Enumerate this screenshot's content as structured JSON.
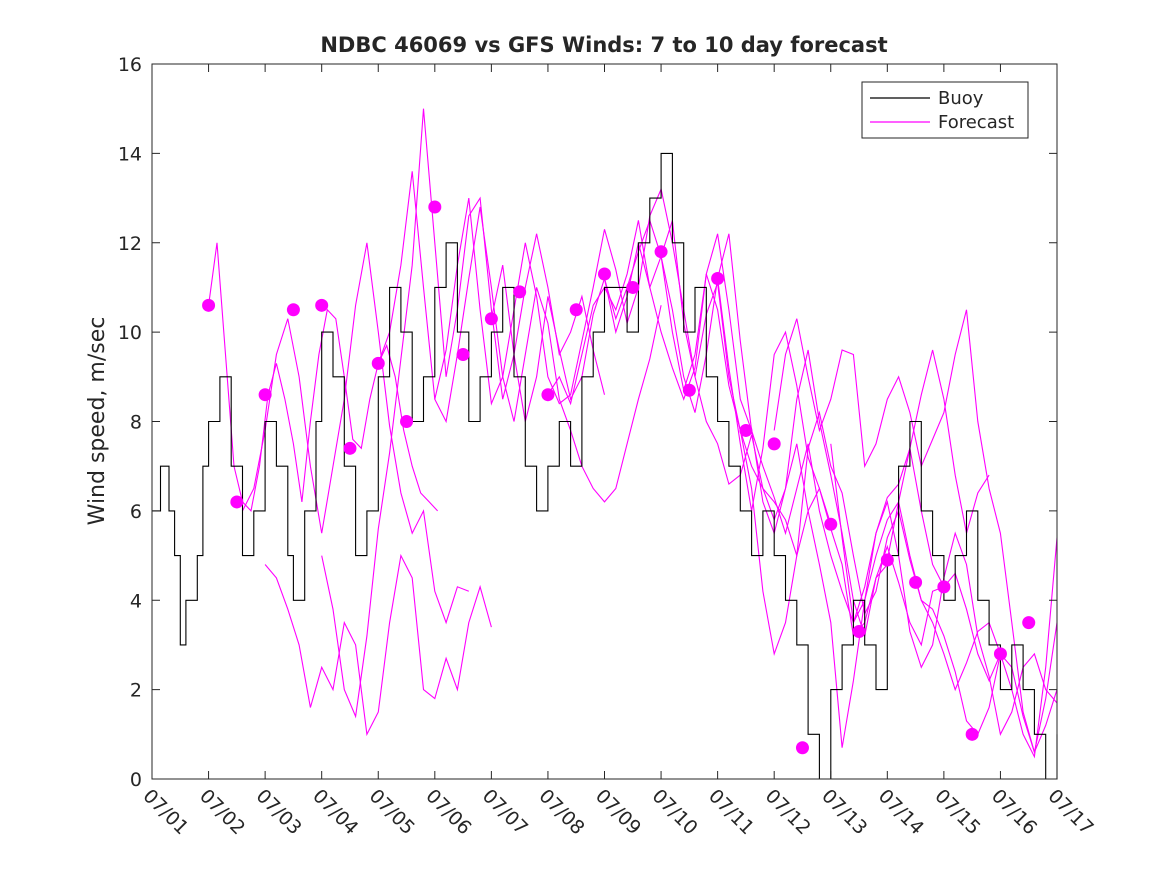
{
  "chart_data": {
    "type": "line",
    "title": "NDBC 46069 vs GFS Winds: 7 to 10 day forecast",
    "ylabel": "Wind speed, m/sec",
    "xlabel": "",
    "xlim": [
      0,
      16
    ],
    "ylim": [
      0,
      16
    ],
    "x_units": "days since 07/01",
    "yticks": [
      0,
      2,
      4,
      6,
      8,
      10,
      12,
      14,
      16
    ],
    "xticks": [
      {
        "x": 0,
        "label": "07/01"
      },
      {
        "x": 1,
        "label": "07/02"
      },
      {
        "x": 2,
        "label": "07/03"
      },
      {
        "x": 3,
        "label": "07/04"
      },
      {
        "x": 4,
        "label": "07/05"
      },
      {
        "x": 5,
        "label": "07/06"
      },
      {
        "x": 6,
        "label": "07/07"
      },
      {
        "x": 7,
        "label": "07/08"
      },
      {
        "x": 8,
        "label": "07/09"
      },
      {
        "x": 9,
        "label": "07/10"
      },
      {
        "x": 10,
        "label": "07/11"
      },
      {
        "x": 11,
        "label": "07/12"
      },
      {
        "x": 12,
        "label": "07/13"
      },
      {
        "x": 13,
        "label": "07/14"
      },
      {
        "x": 14,
        "label": "07/15"
      },
      {
        "x": 15,
        "label": "07/16"
      },
      {
        "x": 16,
        "label": "07/17"
      }
    ],
    "grid": false,
    "legend": {
      "position": "top-right",
      "entries": [
        {
          "label": "Buoy",
          "color": "#000000"
        },
        {
          "label": "Forecast",
          "color": "#ff00ff"
        }
      ]
    },
    "colors": {
      "buoy": "#000000",
      "forecast": "#ff00ff",
      "marker": "#ff00ff"
    },
    "buoy": {
      "x": [
        0,
        0.15,
        0.3,
        0.4,
        0.5,
        0.6,
        0.8,
        0.9,
        1.0,
        1.2,
        1.4,
        1.6,
        1.8,
        2.0,
        2.2,
        2.4,
        2.5,
        2.7,
        2.9,
        3.0,
        3.2,
        3.4,
        3.6,
        3.8,
        4.0,
        4.2,
        4.4,
        4.6,
        4.8,
        5.0,
        5.2,
        5.4,
        5.6,
        5.8,
        6.0,
        6.2,
        6.4,
        6.6,
        6.8,
        7.0,
        7.2,
        7.4,
        7.6,
        7.8,
        8.0,
        8.2,
        8.4,
        8.6,
        8.8,
        9.0,
        9.2,
        9.4,
        9.6,
        9.8,
        10.0,
        10.2,
        10.4,
        10.6,
        10.8,
        11.0,
        11.2,
        11.4,
        11.6,
        11.8,
        12.0,
        12.2,
        12.4,
        12.6,
        12.8,
        13.0,
        13.2,
        13.4,
        13.6,
        13.8,
        14.0,
        14.2,
        14.4,
        14.6,
        14.8,
        15.0,
        15.2,
        15.4,
        15.6,
        15.8,
        16.0
      ],
      "y": [
        6,
        7,
        6,
        5,
        3,
        4,
        5,
        7,
        8,
        9,
        7,
        5,
        6,
        8,
        7,
        5,
        4,
        6,
        8,
        10,
        9,
        7,
        5,
        6,
        9,
        11,
        10,
        8,
        9,
        11,
        12,
        10,
        8,
        9,
        10,
        11,
        9,
        7,
        6,
        7,
        8,
        7,
        9,
        10,
        11,
        11,
        10,
        12,
        13,
        14,
        12,
        10,
        11,
        9,
        8,
        7,
        6,
        5,
        6,
        5,
        4,
        3,
        1,
        0,
        2,
        3,
        4,
        3,
        2,
        5,
        7,
        8,
        6,
        5,
        4,
        5,
        6,
        4,
        3,
        2,
        3,
        2,
        1,
        0,
        1
      ]
    },
    "forecast_runs": [
      {
        "x": [
          1.0,
          1.15,
          1.3,
          1.45,
          1.6,
          1.75,
          1.9,
          2.05,
          2.2,
          2.35,
          2.5,
          2.65,
          2.8,
          2.95,
          3.1,
          3.25,
          3.4,
          3.55,
          3.7,
          3.85,
          4.0,
          4.15,
          4.3,
          4.45,
          4.6,
          4.75,
          4.9,
          5.05
        ],
        "y": [
          10.6,
          12.0,
          9.5,
          7.0,
          6.2,
          6.0,
          7.0,
          8.6,
          9.3,
          8.5,
          7.5,
          6.2,
          8.0,
          9.5,
          10.5,
          10.3,
          9.0,
          7.6,
          7.4,
          8.5,
          9.3,
          9.7,
          9.0,
          7.8,
          7.0,
          6.4,
          6.2,
          6.0
        ]
      },
      {
        "x": [
          1.6,
          1.8,
          2.0,
          2.2,
          2.4,
          2.6,
          2.8,
          3.0,
          3.2,
          3.4,
          3.6,
          3.8,
          4.0,
          4.2,
          4.4,
          4.6,
          4.8,
          5.0,
          5.2,
          5.4,
          5.6
        ],
        "y": [
          6.0,
          6.5,
          7.8,
          9.5,
          10.3,
          9.0,
          7.0,
          5.5,
          7.0,
          8.5,
          10.6,
          12.0,
          10.0,
          7.9,
          6.4,
          5.5,
          6.0,
          4.2,
          3.5,
          4.3,
          4.2
        ]
      },
      {
        "x": [
          2.0,
          2.2,
          2.4,
          2.6,
          2.8,
          3.0,
          3.2,
          3.4,
          3.6,
          3.8,
          4.0,
          4.2,
          4.4,
          4.6,
          4.8,
          5.0,
          5.2,
          5.4,
          5.6,
          5.8,
          6.0
        ],
        "y": [
          4.8,
          4.5,
          3.8,
          3.0,
          1.6,
          2.5,
          2.0,
          3.5,
          3.0,
          1.0,
          1.5,
          3.5,
          5.0,
          4.5,
          2.0,
          1.8,
          2.7,
          2.0,
          3.5,
          4.3,
          3.4
        ]
      },
      {
        "x": [
          3.0,
          3.2,
          3.4,
          3.6,
          3.8,
          4.0,
          4.2,
          4.4,
          4.6,
          4.8,
          5.0,
          5.2,
          5.4,
          5.6,
          5.8,
          6.0,
          6.2,
          6.4,
          6.6,
          6.8,
          7.0,
          7.2,
          7.4,
          7.6,
          7.8,
          8.0
        ],
        "y": [
          5.0,
          3.8,
          2.0,
          1.4,
          3.2,
          5.6,
          7.3,
          9.4,
          11.5,
          15.0,
          12.0,
          9.0,
          10.5,
          12.6,
          13.0,
          10.5,
          8.5,
          9.5,
          11.0,
          12.2,
          11.0,
          9.5,
          10.0,
          10.8,
          9.6,
          8.6
        ]
      },
      {
        "x": [
          4.0,
          4.2,
          4.4,
          4.6,
          4.8,
          5.0,
          5.2,
          5.4,
          5.6,
          5.8,
          6.0,
          6.2,
          6.4,
          6.6,
          6.8,
          7.0,
          7.2,
          7.4,
          7.6,
          7.8,
          8.0,
          8.2,
          8.4,
          8.6,
          8.8,
          9.0
        ],
        "y": [
          9.3,
          10.0,
          11.5,
          13.6,
          11.0,
          8.5,
          8.0,
          9.5,
          11.2,
          12.8,
          11.0,
          9.0,
          8.0,
          9.5,
          11.0,
          10.2,
          8.5,
          7.8,
          7.0,
          6.5,
          6.2,
          6.5,
          7.5,
          8.5,
          9.4,
          10.6
        ]
      },
      {
        "x": [
          5.0,
          5.2,
          5.4,
          5.6,
          5.8,
          6.0,
          6.2,
          6.4,
          6.6,
          6.8,
          7.0,
          7.2,
          7.4,
          7.6,
          7.8,
          8.0,
          8.2,
          8.4,
          8.6,
          8.8,
          9.0,
          9.2,
          9.4,
          9.6,
          9.8,
          10.0,
          10.2,
          10.4,
          10.6,
          10.8,
          11.0,
          11.2,
          11.4,
          11.6,
          11.8,
          12.0
        ],
        "y": [
          8.5,
          9.6,
          11.5,
          13.0,
          10.5,
          8.4,
          9.0,
          10.5,
          12.0,
          10.8,
          9.0,
          8.4,
          8.6,
          9.8,
          11.0,
          12.3,
          11.4,
          10.2,
          11.0,
          12.6,
          13.2,
          12.0,
          10.5,
          9.0,
          8.0,
          7.5,
          6.6,
          6.8,
          7.7,
          6.5,
          6.2,
          5.8,
          5.0,
          6.0,
          6.5,
          5.7
        ]
      },
      {
        "x": [
          6.0,
          6.2,
          6.4,
          6.6,
          6.8,
          7.0,
          7.2,
          7.4,
          7.6,
          7.8,
          8.0,
          8.2,
          8.4,
          8.6,
          8.8,
          9.0,
          9.2,
          9.4,
          9.6,
          9.8,
          10.0,
          10.2,
          10.4,
          10.6,
          10.8,
          11.0,
          11.2,
          11.4,
          11.6,
          11.8,
          12.0,
          12.2,
          12.4,
          12.6,
          12.8,
          13.0
        ],
        "y": [
          10.3,
          11.5,
          9.5,
          8.0,
          9.0,
          10.8,
          9.6,
          8.5,
          9.0,
          10.4,
          11.2,
          10.0,
          10.8,
          12.0,
          11.0,
          11.7,
          10.5,
          9.0,
          8.2,
          9.5,
          11.2,
          9.2,
          7.5,
          6.0,
          7.4,
          9.5,
          10.0,
          8.8,
          7.2,
          6.5,
          5.6,
          4.8,
          3.2,
          3.5,
          4.5,
          4.8
        ]
      },
      {
        "x": [
          7.0,
          7.2,
          7.4,
          7.6,
          7.8,
          8.0,
          8.2,
          8.4,
          8.6,
          8.8,
          9.0,
          9.2,
          9.4,
          9.6,
          9.8,
          10.0,
          10.2,
          10.4,
          10.6,
          10.8,
          11.0,
          11.2,
          11.4,
          11.6,
          11.8,
          12.0,
          12.2,
          12.4,
          12.6,
          12.8,
          13.0,
          13.2,
          13.4,
          13.6,
          13.8,
          14.0
        ],
        "y": [
          8.6,
          9.0,
          8.4,
          9.5,
          10.6,
          11.0,
          10.5,
          11.3,
          12.5,
          11.0,
          10.0,
          9.2,
          8.5,
          9.2,
          11.3,
          10.5,
          8.8,
          7.8,
          7.0,
          6.5,
          5.8,
          6.5,
          8.5,
          9.6,
          8.0,
          6.8,
          5.5,
          4.0,
          3.2,
          4.5,
          5.2,
          4.4,
          3.5,
          3.0,
          4.2,
          4.3
        ]
      },
      {
        "x": [
          8.0,
          8.2,
          8.4,
          8.6,
          8.8,
          9.0,
          9.2,
          9.4,
          9.6,
          9.8,
          10.0,
          10.2,
          10.4,
          10.6,
          10.8,
          11.0,
          11.2,
          11.4,
          11.6,
          11.8,
          12.0,
          12.2,
          12.4,
          12.6,
          12.8,
          13.0,
          13.2,
          13.4,
          13.6,
          13.8,
          14.0,
          14.2,
          14.4,
          14.6,
          14.8,
          15.0
        ],
        "y": [
          11.2,
          10.3,
          11.0,
          11.8,
          12.5,
          11.7,
          10.0,
          8.7,
          9.5,
          11.3,
          12.2,
          10.5,
          8.5,
          7.8,
          7.0,
          6.3,
          5.5,
          6.5,
          7.5,
          6.0,
          5.0,
          4.2,
          3.5,
          4.0,
          5.0,
          5.8,
          6.2,
          5.0,
          4.0,
          3.5,
          2.8,
          2.0,
          2.6,
          3.3,
          3.5,
          2.8
        ]
      },
      {
        "x": [
          9.0,
          9.2,
          9.4,
          9.6,
          9.8,
          10.0,
          10.2,
          10.4,
          10.6,
          10.8,
          11.0,
          11.2,
          11.4,
          11.6,
          11.8,
          12.0,
          12.2,
          12.4,
          12.6,
          12.8,
          13.0,
          13.2,
          13.4,
          13.6,
          13.8,
          14.0,
          14.2,
          14.4,
          14.6,
          14.8,
          15.0,
          15.2,
          15.4,
          15.6,
          15.8,
          16.0
        ],
        "y": [
          11.7,
          12.5,
          10.2,
          9.0,
          10.4,
          11.1,
          9.0,
          7.8,
          6.5,
          4.2,
          2.8,
          3.5,
          5.0,
          7.4,
          8.2,
          7.0,
          6.4,
          5.0,
          3.7,
          4.2,
          5.4,
          6.0,
          4.9,
          4.0,
          3.8,
          3.2,
          2.4,
          1.3,
          1.0,
          1.6,
          2.8,
          2.5,
          1.4,
          0.6,
          1.2,
          2.0
        ]
      },
      {
        "x": [
          10.0,
          10.2,
          10.4,
          10.6,
          10.8,
          11.0,
          11.2,
          11.4,
          11.6,
          11.8,
          12.0,
          12.2,
          12.4,
          12.6,
          12.8,
          13.0,
          13.2,
          13.4,
          13.6,
          13.8,
          14.0,
          14.2,
          14.4,
          14.6,
          14.8,
          15.0,
          15.2,
          15.4,
          15.6,
          15.8,
          16.0
        ],
        "y": [
          11.2,
          12.2,
          9.8,
          7.8,
          6.2,
          5.5,
          6.5,
          7.5,
          6.0,
          4.8,
          3.5,
          0.7,
          2.2,
          4.0,
          5.5,
          6.2,
          5.0,
          3.3,
          2.5,
          3.0,
          4.5,
          5.5,
          4.8,
          3.2,
          2.3,
          1.0,
          1.5,
          2.5,
          2.8,
          2.0,
          1.7
        ]
      },
      {
        "x": [
          11.0,
          11.2,
          11.4,
          11.6,
          11.8,
          12.0,
          12.2,
          12.4,
          12.6,
          12.8,
          13.0,
          13.2,
          13.4,
          13.6,
          13.8,
          14.0,
          14.2,
          14.4,
          14.6,
          14.8,
          15.0,
          15.2,
          15.4,
          15.6,
          15.8,
          16.0
        ],
        "y": [
          7.8,
          9.5,
          10.3,
          9.0,
          7.8,
          8.5,
          9.6,
          9.5,
          7.0,
          7.5,
          8.5,
          9.0,
          8.2,
          7.0,
          7.6,
          8.2,
          9.5,
          10.5,
          8.0,
          6.5,
          5.5,
          3.5,
          1.5,
          0.6,
          1.8,
          3.5
        ]
      },
      {
        "x": [
          12.0,
          12.2,
          12.4,
          12.6,
          12.8,
          13.0,
          13.2,
          13.4,
          13.6,
          13.8,
          14.0,
          14.2,
          14.4,
          14.6,
          14.8
        ],
        "y": [
          7.5,
          5.4,
          3.5,
          4.3,
          5.5,
          6.3,
          6.6,
          7.4,
          8.6,
          9.6,
          8.5,
          6.8,
          5.5,
          6.4,
          6.8
        ]
      },
      {
        "x": [
          13.0,
          13.2,
          13.4,
          13.6,
          13.8,
          14.0,
          14.2,
          14.4,
          14.6,
          14.8,
          15.0,
          15.2,
          15.4,
          15.6,
          15.8,
          16.0
        ],
        "y": [
          4.9,
          6.2,
          7.4,
          6.0,
          4.8,
          4.3,
          4.6,
          3.8,
          2.8,
          2.2,
          2.8,
          2.0,
          1.0,
          0.5,
          2.5,
          5.4
        ]
      }
    ],
    "markers": {
      "x": [
        1.0,
        1.5,
        2.0,
        2.5,
        3.0,
        3.5,
        4.0,
        4.5,
        5.0,
        5.5,
        6.0,
        6.5,
        7.0,
        7.5,
        8.0,
        8.5,
        9.0,
        9.5,
        10.0,
        10.5,
        11.0,
        11.5,
        12.0,
        12.5,
        13.0,
        13.5,
        14.0,
        14.5,
        15.0,
        15.5
      ],
      "y": [
        10.6,
        6.2,
        8.6,
        10.5,
        10.6,
        7.4,
        9.3,
        8.0,
        12.8,
        9.5,
        10.3,
        10.9,
        8.6,
        10.5,
        11.3,
        11.0,
        11.8,
        8.7,
        11.2,
        7.8,
        7.5,
        0.7,
        5.7,
        3.3,
        4.9,
        4.4,
        4.3,
        1.0,
        2.8,
        3.5
      ]
    }
  }
}
